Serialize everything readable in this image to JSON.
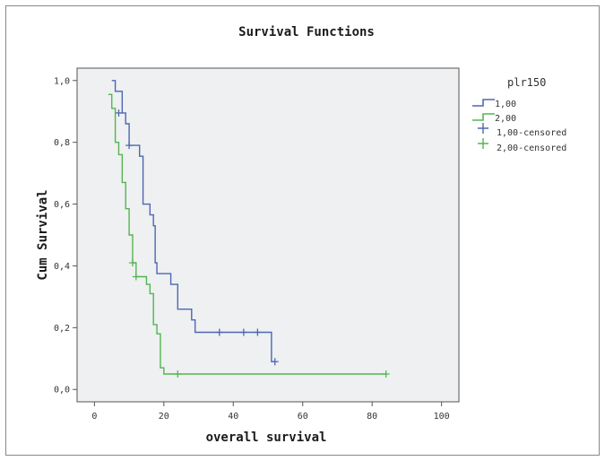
{
  "chart_data": {
    "type": "line",
    "title": "Survival Functions",
    "xlabel": "overall survival",
    "ylabel": "Cum Survival",
    "xlim": [
      -5,
      105
    ],
    "ylim": [
      -0.04,
      1.04
    ],
    "x_ticks": [
      {
        "value": 0,
        "label": "0"
      },
      {
        "value": 20,
        "label": "20"
      },
      {
        "value": 40,
        "label": "40"
      },
      {
        "value": 60,
        "label": "60"
      },
      {
        "value": 80,
        "label": "80"
      },
      {
        "value": 100,
        "label": "100"
      }
    ],
    "y_ticks": [
      {
        "value": 0.0,
        "label": "0,0"
      },
      {
        "value": 0.2,
        "label": "0,2"
      },
      {
        "value": 0.4,
        "label": "0,4"
      },
      {
        "value": 0.6,
        "label": "0,6"
      },
      {
        "value": 0.8,
        "label": "0,8"
      },
      {
        "value": 1.0,
        "label": "1,0"
      }
    ],
    "grid": false,
    "background_color": "#eef0f1",
    "legend": {
      "title": "plr150",
      "placement": "right",
      "entries": [
        "1,00",
        "2,00",
        "1,00-censored",
        "2,00-censored"
      ]
    },
    "series": [
      {
        "label": "1,00",
        "color": "#4f66b4",
        "steps": [
          [
            5,
            1.0
          ],
          [
            6,
            0.965
          ],
          [
            8,
            0.895
          ],
          [
            9,
            0.86
          ],
          [
            10,
            0.79
          ],
          [
            13,
            0.755
          ],
          [
            14,
            0.6
          ],
          [
            16,
            0.565
          ],
          [
            17,
            0.53
          ],
          [
            17.5,
            0.41
          ],
          [
            18,
            0.375
          ],
          [
            22,
            0.34
          ],
          [
            24,
            0.26
          ],
          [
            28,
            0.225
          ],
          [
            29,
            0.185
          ],
          [
            51,
            0.09
          ],
          [
            52,
            0.09
          ]
        ],
        "censored": [
          [
            7,
            0.895
          ],
          [
            10,
            0.79
          ],
          [
            36,
            0.185
          ],
          [
            43,
            0.185
          ],
          [
            47,
            0.185
          ],
          [
            52,
            0.09
          ]
        ]
      },
      {
        "label": "2,00",
        "color": "#53b653",
        "steps": [
          [
            4,
            0.955
          ],
          [
            5,
            0.91
          ],
          [
            6,
            0.8
          ],
          [
            7,
            0.76
          ],
          [
            8,
            0.67
          ],
          [
            9,
            0.585
          ],
          [
            10,
            0.5
          ],
          [
            11,
            0.41
          ],
          [
            12,
            0.365
          ],
          [
            15,
            0.34
          ],
          [
            16,
            0.31
          ],
          [
            17,
            0.21
          ],
          [
            18,
            0.18
          ],
          [
            19,
            0.07
          ],
          [
            20,
            0.05
          ],
          [
            84,
            0.05
          ]
        ],
        "censored": [
          [
            11,
            0.41
          ],
          [
            12,
            0.365
          ],
          [
            24,
            0.05
          ],
          [
            84,
            0.05
          ]
        ]
      }
    ]
  }
}
